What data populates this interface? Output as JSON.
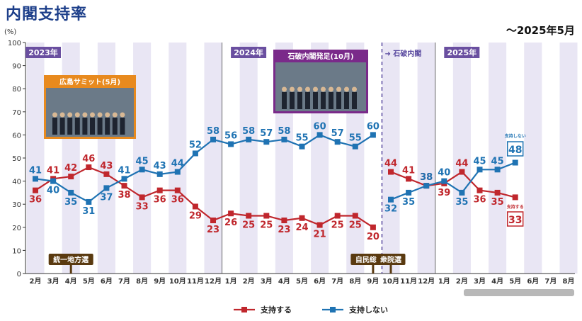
{
  "title": "内閣支持率",
  "date_range": "～2025年5月",
  "photo_captions": {
    "hiroshima": "広島サミット(5月)",
    "ishiba": "石破内閣発足(10月)"
  },
  "colors": {
    "support": "#c0272d",
    "nonsupport": "#1f73b3",
    "band": "#e9e6f4",
    "year_label": "#6a4fa0",
    "event_label": "#5a3a10"
  },
  "chart_data": {
    "type": "line",
    "ylabel": "(%)",
    "ylim": [
      0,
      100
    ],
    "yticks": [
      0,
      10,
      20,
      30,
      40,
      50,
      60,
      70,
      80,
      90,
      100
    ],
    "x": [
      "2月",
      "3月",
      "4月",
      "5月",
      "6月",
      "7月",
      "8月",
      "9月",
      "10月",
      "11月",
      "12月",
      "1月",
      "2月",
      "3月",
      "4月",
      "5月",
      "6月",
      "7月",
      "8月",
      "9月",
      "10月",
      "11月",
      "12月",
      "1月",
      "2月",
      "3月",
      "4月",
      "5月",
      "6月",
      "7月",
      "8月"
    ],
    "year_labels": [
      {
        "label": "2023年",
        "index": 0
      },
      {
        "label": "2024年",
        "index": 11
      },
      {
        "label": "2025年",
        "index": 23
      }
    ],
    "cabinet_change": {
      "label": "石破内閣",
      "after_index": 19
    },
    "events": [
      {
        "label": "統一地方選",
        "index": 2
      },
      {
        "label": "自民総裁選",
        "index": 19
      },
      {
        "label": "衆院選",
        "index": 20
      }
    ],
    "series": [
      {
        "name": "支持する",
        "segments": [
          {
            "start": 0,
            "values": [
              36,
              41,
              42,
              46,
              43,
              38,
              33,
              36,
              36,
              29,
              23,
              26,
              25,
              25,
              23,
              24,
              21,
              25,
              25,
              20
            ]
          },
          {
            "start": 20,
            "values": [
              44,
              41,
              38,
              39,
              44,
              36,
              35,
              33
            ]
          }
        ],
        "last_value": "33"
      },
      {
        "name": "支持しない",
        "segments": [
          {
            "start": 0,
            "values": [
              41,
              40,
              35,
              31,
              37,
              41,
              45,
              43,
              44,
              52,
              58,
              56,
              58,
              57,
              58,
              55,
              60,
              57,
              55,
              60
            ]
          },
          {
            "start": 20,
            "values": [
              32,
              35,
              38,
              40,
              35,
              45,
              45,
              48
            ]
          }
        ],
        "last_value": "48"
      }
    ],
    "legend": {
      "position": "bottom"
    }
  }
}
